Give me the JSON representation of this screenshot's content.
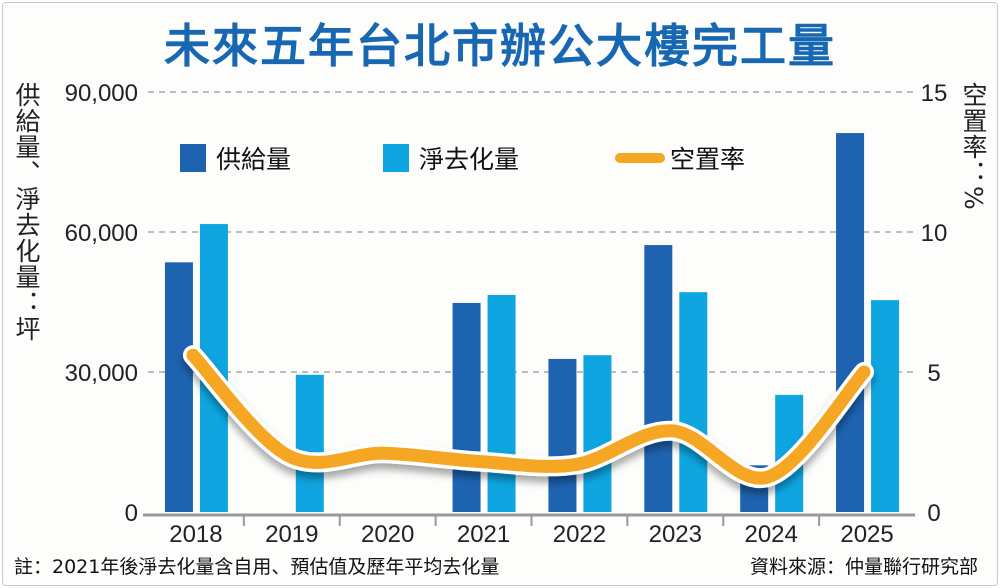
{
  "title": "未來五年台北市辦公大樓完工量",
  "left_axis_label": "供給量、淨去化量：坪",
  "right_axis_label": "空置率：%",
  "note": "註：2021年後淨去化量含自用、預估值及歷年平均去化量",
  "source": "資料來源：仲量聯行研究部",
  "chart_data": {
    "type": "bar+line",
    "categories": [
      "2018",
      "2019",
      "2020",
      "2021",
      "2022",
      "2023",
      "2024",
      "2025"
    ],
    "series": [
      {
        "name": "供給量",
        "type": "bar",
        "axis": "left",
        "color": "#1d63b0",
        "values": [
          53500,
          0,
          0,
          44800,
          32800,
          57200,
          10000,
          81200
        ]
      },
      {
        "name": "淨去化量",
        "type": "bar",
        "axis": "left",
        "color": "#0ea5e0",
        "values": [
          61700,
          29400,
          0,
          46500,
          33600,
          47100,
          25100,
          45400
        ]
      },
      {
        "name": "空置率",
        "type": "line",
        "axis": "right",
        "color": "#f5a623",
        "values": [
          5.6,
          2.0,
          2.1,
          1.8,
          1.7,
          2.9,
          1.25,
          5.0
        ]
      }
    ],
    "left_axis": {
      "range": [
        0,
        90000
      ],
      "ticks": [
        "0",
        "30,000",
        "60,000",
        "90,000"
      ]
    },
    "right_axis": {
      "range": [
        0,
        15
      ],
      "ticks": [
        "0",
        "5",
        "10",
        "15"
      ]
    },
    "grid": "dashed horizontal",
    "legend": "top"
  }
}
